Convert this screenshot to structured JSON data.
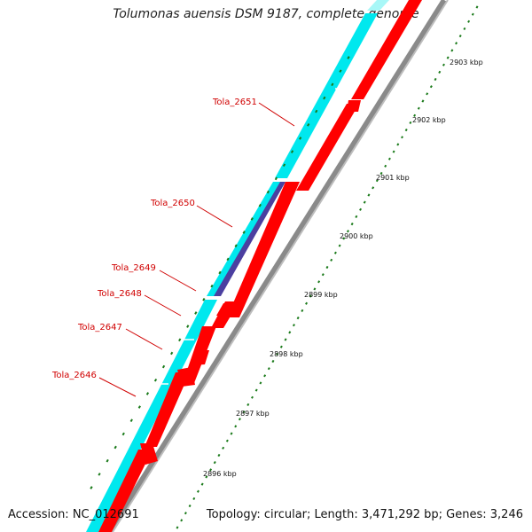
{
  "title": "Tolumonas auensis DSM 9187, complete genome",
  "footer": {
    "accession": "Accession: NC_012691",
    "summary": "Topology: circular; Length: 3,471,292 bp; Genes: 3,246"
  },
  "colors": {
    "reverse_gene": "#00e8ee",
    "forward_gene": "#ff0000",
    "highlight_gene": "#4b3fa0",
    "backbone": "#888888",
    "tick": "#1a7a1a",
    "label": "#d00000"
  },
  "coordinate_labels": [
    "2903 kbp",
    "2902 kbp",
    "2901 kbp",
    "2900 kbp",
    "2899 kbp",
    "2898 kbp",
    "2897 kbp",
    "2896 kbp"
  ],
  "gene_labels": [
    "Tola_2651",
    "Tola_2650",
    "Tola_2649",
    "Tola_2648",
    "Tola_2647",
    "Tola_2646"
  ]
}
